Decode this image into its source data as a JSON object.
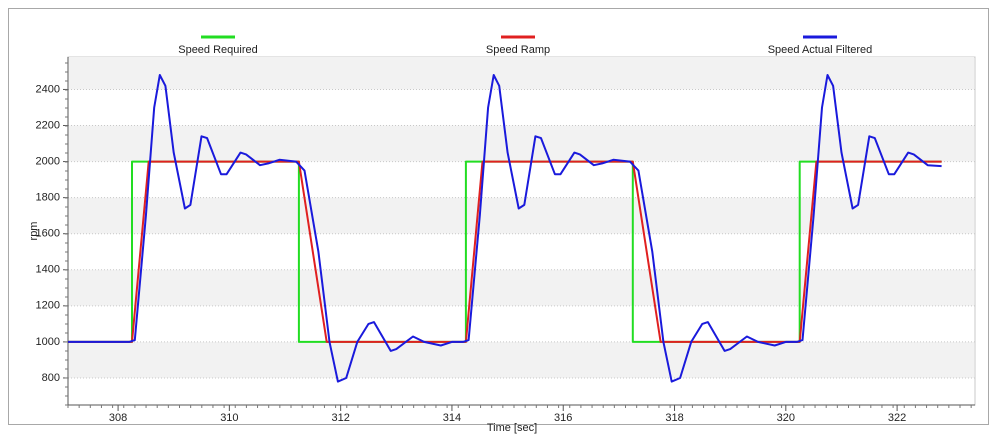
{
  "chart_data": {
    "type": "line",
    "xlabel": "Time [sec]",
    "ylabel": "rpm",
    "xlim": [
      307.1,
      323.4
    ],
    "xticks": [
      308,
      310,
      312,
      314,
      316,
      318,
      320,
      322
    ],
    "ylim": [
      650,
      2580
    ],
    "yticks": [
      800,
      1000,
      1200,
      1400,
      1600,
      1800,
      2000,
      2200,
      2400
    ],
    "grid": true,
    "legend": "top",
    "series": [
      {
        "name": "Speed Required",
        "color": "#22dd22",
        "x": [
          307.1,
          308.25,
          308.25,
          311.25,
          311.25,
          314.25,
          314.25,
          317.25,
          317.25,
          320.25,
          320.25,
          322.8
        ],
        "values": [
          1000,
          1000,
          2000,
          2000,
          1000,
          1000,
          2000,
          2000,
          1000,
          1000,
          2000,
          2000
        ]
      },
      {
        "name": "Speed Ramp",
        "color": "#e02020",
        "x": [
          307.1,
          308.25,
          308.55,
          311.25,
          311.75,
          314.25,
          314.55,
          317.25,
          317.75,
          320.25,
          320.55,
          322.8
        ],
        "values": [
          1000,
          1000,
          2000,
          2000,
          1000,
          1000,
          2000,
          2000,
          1000,
          1000,
          2000,
          2000
        ]
      },
      {
        "name": "Speed Actual Filtered",
        "color": "#1a1adc",
        "x": [
          307.1,
          308.2,
          308.3,
          308.5,
          308.65,
          308.75,
          308.85,
          309.0,
          309.2,
          309.3,
          309.5,
          309.6,
          309.85,
          309.95,
          310.2,
          310.3,
          310.55,
          310.7,
          310.9,
          311.2,
          311.35,
          311.6,
          311.8,
          311.95,
          312.1,
          312.3,
          312.5,
          312.6,
          312.9,
          313.0,
          313.3,
          313.5,
          313.8,
          314.0,
          314.2,
          314.3,
          314.5,
          314.65,
          314.75,
          314.85,
          315.0,
          315.2,
          315.3,
          315.5,
          315.6,
          315.85,
          315.95,
          316.2,
          316.3,
          316.55,
          316.7,
          316.9,
          317.2,
          317.35,
          317.6,
          317.8,
          317.95,
          318.1,
          318.3,
          318.5,
          318.6,
          318.9,
          319.0,
          319.3,
          319.5,
          319.8,
          320.0,
          320.2,
          320.3,
          320.5,
          320.65,
          320.75,
          320.85,
          321.0,
          321.2,
          321.3,
          321.5,
          321.6,
          321.85,
          321.95,
          322.2,
          322.3,
          322.55,
          322.8
        ],
        "values": [
          1000,
          1000,
          1010,
          1700,
          2300,
          2480,
          2420,
          2050,
          1740,
          1760,
          2140,
          2130,
          1930,
          1930,
          2050,
          2040,
          1980,
          1990,
          2010,
          2000,
          1950,
          1500,
          1000,
          780,
          800,
          1000,
          1100,
          1110,
          950,
          960,
          1030,
          1000,
          980,
          1000,
          1000,
          1010,
          1700,
          2300,
          2480,
          2420,
          2050,
          1740,
          1760,
          2140,
          2130,
          1930,
          1930,
          2050,
          2040,
          1980,
          1990,
          2010,
          2000,
          1950,
          1500,
          1000,
          780,
          800,
          1000,
          1100,
          1110,
          950,
          960,
          1030,
          1000,
          980,
          1000,
          1000,
          1010,
          1700,
          2300,
          2480,
          2420,
          2050,
          1740,
          1760,
          2140,
          2130,
          1930,
          1930,
          2050,
          2040,
          1980,
          1975
        ]
      }
    ]
  }
}
